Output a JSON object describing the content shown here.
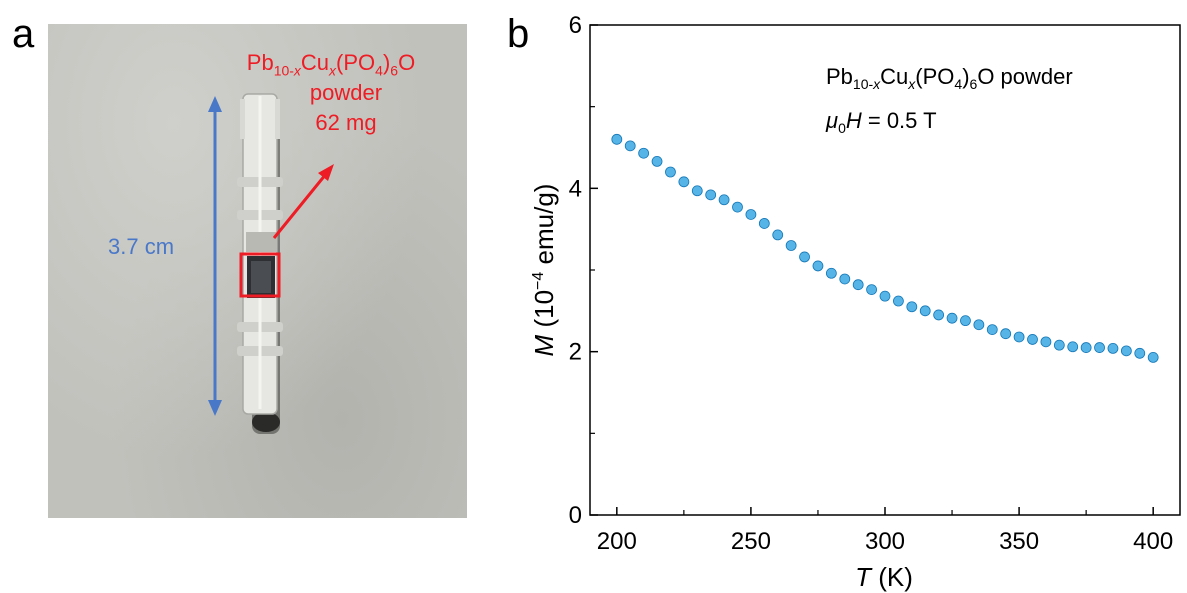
{
  "panels": {
    "a_label": "a",
    "b_label": "b"
  },
  "photo": {
    "sample_formula": "Pb10-xCux(PO4)6O",
    "sample_line2": "powder",
    "sample_line3": "62 mg",
    "length_label": "3.7 cm",
    "colors": {
      "annotation_red": "#ee1c24",
      "arrow_blue": "#4a78c9"
    }
  },
  "chart_data": {
    "type": "scatter",
    "xlabel": "T (K)",
    "ylabel": "M (10-4 emu/g)",
    "xlim": [
      190,
      410
    ],
    "ylim": [
      0,
      6
    ],
    "xticks": [
      200,
      250,
      300,
      350,
      400
    ],
    "yticks": [
      0,
      2,
      4,
      6
    ],
    "annotation_line1": "Pb10-xCux(PO4)6O powder",
    "annotation_line2": "μ0H = 0.5 T",
    "marker_color": "#1f9bde",
    "series": [
      {
        "x": [
          200,
          205,
          210,
          215,
          220,
          225,
          230,
          235,
          240,
          245,
          250,
          255,
          260,
          265,
          270,
          275,
          280,
          285,
          290,
          295,
          300,
          305,
          310,
          315,
          320,
          325,
          330,
          335,
          340,
          345,
          350,
          355,
          360,
          365,
          370,
          375,
          380,
          385,
          390,
          395,
          400
        ],
        "values": [
          4.6,
          4.52,
          4.43,
          4.33,
          4.2,
          4.08,
          3.97,
          3.92,
          3.86,
          3.77,
          3.68,
          3.57,
          3.43,
          3.3,
          3.16,
          3.05,
          2.96,
          2.89,
          2.82,
          2.76,
          2.68,
          2.62,
          2.55,
          2.5,
          2.45,
          2.41,
          2.38,
          2.33,
          2.27,
          2.22,
          2.18,
          2.15,
          2.12,
          2.08,
          2.06,
          2.05,
          2.05,
          2.04,
          2.01,
          1.98,
          1.93
        ]
      }
    ]
  }
}
